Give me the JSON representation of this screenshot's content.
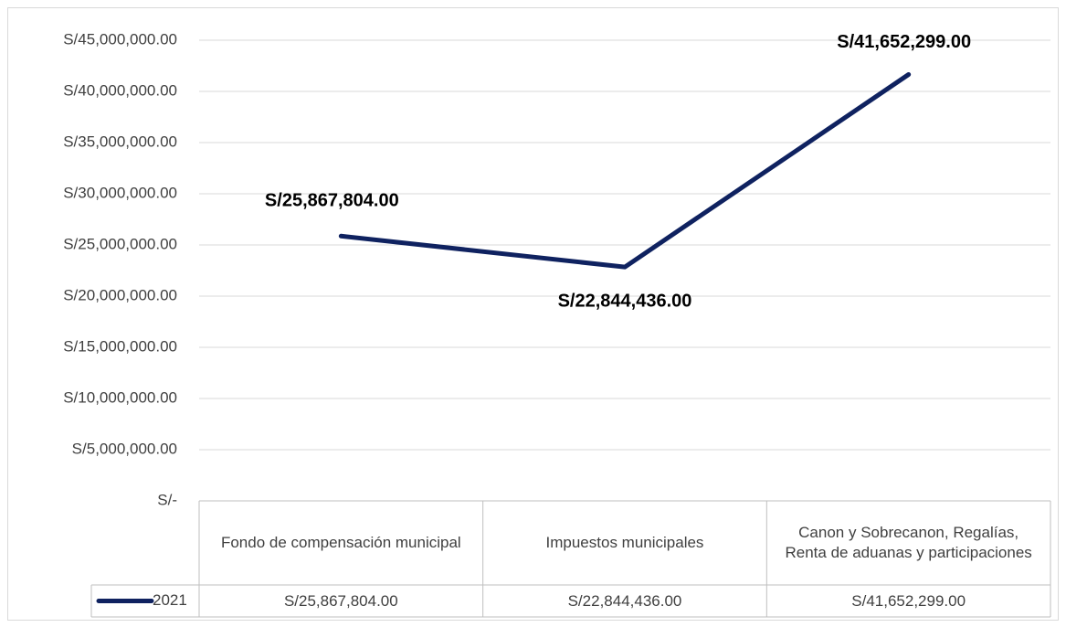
{
  "chart_data": {
    "type": "line",
    "categories": [
      "Fondo de compensación municipal",
      "Impuestos municipales",
      "Canon y Sobrecanon, Regalías, Renta de aduanas y participaciones"
    ],
    "series": [
      {
        "name": "2021",
        "color": "#0f2260",
        "values": [
          25867804,
          22844436,
          41652299
        ],
        "value_labels": [
          "S/25,867,804.00",
          "S/22,844,436.00",
          "S/41,652,299.00"
        ]
      }
    ],
    "ylim": [
      0,
      45000000
    ],
    "yticks": [
      {
        "value": 0,
        "label": "S/-"
      },
      {
        "value": 5000000,
        "label": "S/5,000,000.00"
      },
      {
        "value": 10000000,
        "label": "S/10,000,000.00"
      },
      {
        "value": 15000000,
        "label": "S/15,000,000.00"
      },
      {
        "value": 20000000,
        "label": "S/20,000,000.00"
      },
      {
        "value": 25000000,
        "label": "S/25,000,000.00"
      },
      {
        "value": 30000000,
        "label": "S/30,000,000.00"
      },
      {
        "value": 35000000,
        "label": "S/35,000,000.00"
      },
      {
        "value": 40000000,
        "label": "S/40,000,000.00"
      },
      {
        "value": 45000000,
        "label": "S/45,000,000.00"
      }
    ],
    "grid": true,
    "data_table": true
  }
}
